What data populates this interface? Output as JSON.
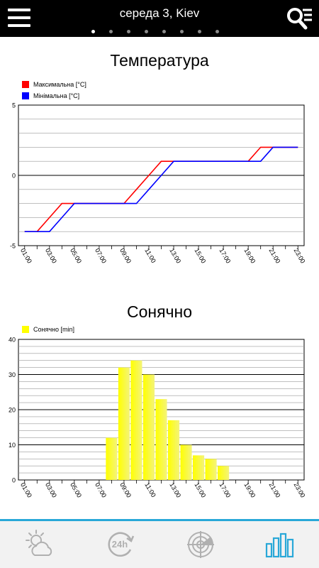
{
  "header": {
    "title": "середа 3, Kiev",
    "page_count": 8,
    "active_page": 0
  },
  "charts": {
    "temperature_title": "Температура",
    "temperature_legend": [
      "Максимальна [°C]",
      "Мінімальна [°C]"
    ],
    "sunshine_title": "Сонячно",
    "sunshine_legend": [
      "Сонячно [min]"
    ]
  },
  "chart_data": [
    {
      "type": "line",
      "title": "Температура",
      "x": [
        "01:00",
        "02:00",
        "03:00",
        "04:00",
        "05:00",
        "06:00",
        "07:00",
        "08:00",
        "09:00",
        "10:00",
        "11:00",
        "12:00",
        "13:00",
        "14:00",
        "15:00",
        "16:00",
        "17:00",
        "18:00",
        "19:00",
        "20:00",
        "21:00",
        "22:00",
        "23:00"
      ],
      "x_tick_labels": [
        "01:00",
        "03:00",
        "05:00",
        "07:00",
        "09:00",
        "11:00",
        "13:00",
        "15:00",
        "17:00",
        "19:00",
        "21:00",
        "23:00"
      ],
      "series": [
        {
          "name": "Максимальна [°C]",
          "color": "#ff0000",
          "values": [
            -4,
            -4,
            -3,
            -2,
            -2,
            -2,
            -2,
            -2,
            -2,
            -1,
            0,
            1,
            1,
            1,
            1,
            1,
            1,
            1,
            1,
            2,
            2,
            2,
            2
          ]
        },
        {
          "name": "Мінімальна [°C]",
          "color": "#0000ff",
          "values": [
            -4,
            -4,
            -4,
            -3,
            -2,
            -2,
            -2,
            -2,
            -2,
            -2,
            -1,
            0,
            1,
            1,
            1,
            1,
            1,
            1,
            1,
            1,
            2,
            2,
            2
          ]
        }
      ],
      "ylim": [
        -5,
        5
      ],
      "y_ticks": [
        -5,
        0,
        5
      ],
      "grid": true,
      "legend": "top-left"
    },
    {
      "type": "bar",
      "title": "Сонячно",
      "categories": [
        "01:00",
        "02:00",
        "03:00",
        "04:00",
        "05:00",
        "06:00",
        "07:00",
        "08:00",
        "09:00",
        "10:00",
        "11:00",
        "12:00",
        "13:00",
        "14:00",
        "15:00",
        "16:00",
        "17:00",
        "18:00",
        "19:00",
        "20:00",
        "21:00",
        "22:00",
        "23:00"
      ],
      "x_tick_labels": [
        "01:00",
        "03:00",
        "05:00",
        "07:00",
        "09:00",
        "11:00",
        "13:00",
        "15:00",
        "17:00",
        "19:00",
        "21:00",
        "23:00"
      ],
      "series": [
        {
          "name": "Сонячно [min]",
          "color": "#ffff00",
          "values": [
            0,
            0,
            0,
            0,
            0,
            0,
            0,
            12,
            32,
            34,
            30,
            23,
            17,
            10,
            7,
            6,
            4,
            0,
            0,
            0,
            0,
            0,
            0
          ]
        }
      ],
      "ylim": [
        0,
        40
      ],
      "y_ticks": [
        0,
        10,
        20,
        30,
        40
      ],
      "grid": true,
      "legend": "top-left"
    }
  ],
  "bottom_nav": {
    "items": [
      "weather-cloud-icon",
      "24h-icon",
      "radar-icon",
      "chart-bars-icon"
    ],
    "active_index": 3,
    "accent": "#29a8d8",
    "inactive_color": "#b0b0b0"
  }
}
